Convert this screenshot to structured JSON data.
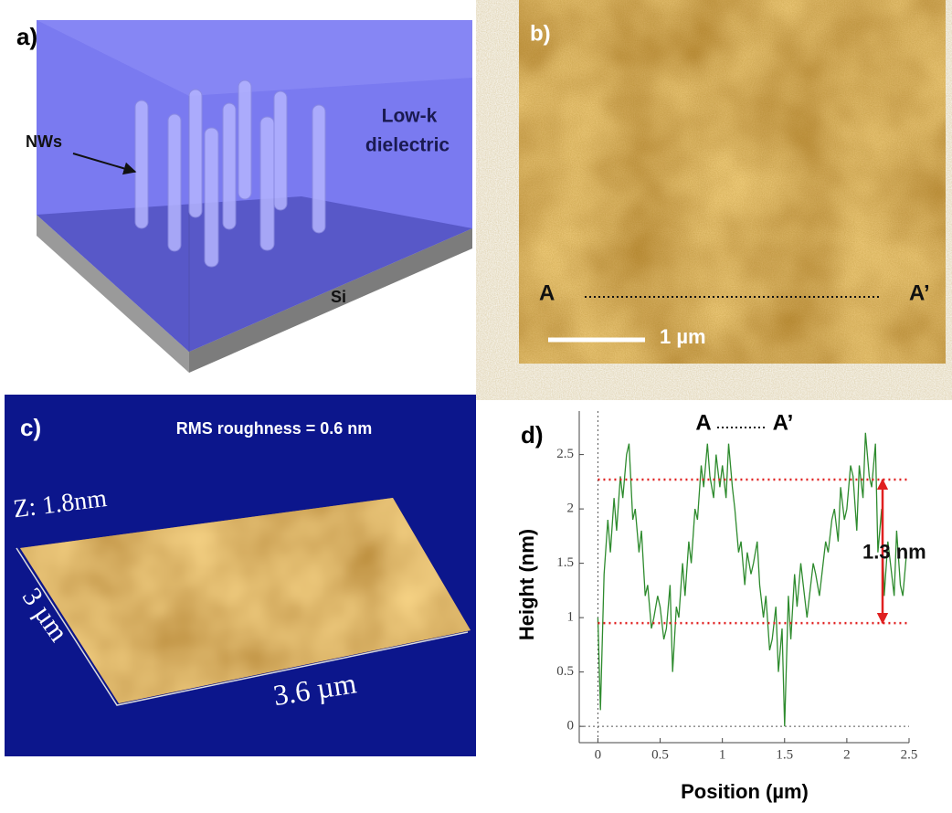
{
  "panel_a": {
    "label": "a)",
    "nws": "NWs",
    "dielectric": [
      "Low-k",
      "dielectric"
    ],
    "substrate": "Si"
  },
  "panel_b": {
    "label": "b)",
    "start": "A",
    "end": "A’",
    "scale_bar": "1 µm"
  },
  "panel_c": {
    "label": "c)",
    "caption": "RMS roughness = 0.6 nm",
    "z_label": "Z: 1.8nm",
    "y_label": "3 µm",
    "x_label": "3.6 µm"
  },
  "chart_data": {
    "type": "line",
    "label": "d)",
    "title_start": "A",
    "title_end": "A’",
    "xlabel": "Position (µm)",
    "ylabel": "Height (nm)",
    "x": [
      0,
      0.02,
      0.05,
      0.08,
      0.1,
      0.13,
      0.15,
      0.18,
      0.2,
      0.23,
      0.25,
      0.28,
      0.3,
      0.33,
      0.35,
      0.38,
      0.4,
      0.43,
      0.45,
      0.48,
      0.5,
      0.53,
      0.55,
      0.58,
      0.6,
      0.63,
      0.65,
      0.68,
      0.7,
      0.73,
      0.75,
      0.78,
      0.8,
      0.83,
      0.85,
      0.88,
      0.9,
      0.93,
      0.95,
      0.98,
      1.0,
      1.03,
      1.05,
      1.08,
      1.1,
      1.13,
      1.15,
      1.18,
      1.2,
      1.23,
      1.25,
      1.28,
      1.3,
      1.33,
      1.35,
      1.38,
      1.4,
      1.43,
      1.45,
      1.48,
      1.5,
      1.53,
      1.55,
      1.58,
      1.6,
      1.63,
      1.65,
      1.68,
      1.7,
      1.73,
      1.75,
      1.78,
      1.8,
      1.83,
      1.85,
      1.88,
      1.9,
      1.93,
      1.95,
      1.98,
      2.0,
      2.03,
      2.05,
      2.08,
      2.1,
      2.13,
      2.15,
      2.18,
      2.2,
      2.23,
      2.25,
      2.28,
      2.3,
      2.33,
      2.35,
      2.38,
      2.4,
      2.43,
      2.45,
      2.48
    ],
    "series": [
      {
        "color": "#2e8b2e",
        "values": [
          1.0,
          0.15,
          1.4,
          1.9,
          1.6,
          2.1,
          1.8,
          2.3,
          2.1,
          2.5,
          2.6,
          1.9,
          2.0,
          1.6,
          1.8,
          1.2,
          1.3,
          0.9,
          1.0,
          1.2,
          1.1,
          0.8,
          0.9,
          1.3,
          0.5,
          1.1,
          1.0,
          1.5,
          1.2,
          1.7,
          1.5,
          2.0,
          1.9,
          2.4,
          2.2,
          2.6,
          2.3,
          2.1,
          2.5,
          2.2,
          2.4,
          2.1,
          2.6,
          2.2,
          2.0,
          1.6,
          1.7,
          1.3,
          1.6,
          1.4,
          1.5,
          1.7,
          1.3,
          1.0,
          1.2,
          0.7,
          0.8,
          1.1,
          0.5,
          0.9,
          0.0,
          1.2,
          0.8,
          1.4,
          1.1,
          1.5,
          1.3,
          1.0,
          1.2,
          1.5,
          1.4,
          1.2,
          1.4,
          1.7,
          1.6,
          1.9,
          2.0,
          1.7,
          2.2,
          1.9,
          2.0,
          2.4,
          2.3,
          1.8,
          2.4,
          2.1,
          2.7,
          2.3,
          2.2,
          2.6,
          1.6,
          2.0,
          1.2,
          1.7,
          1.5,
          1.2,
          1.8,
          1.3,
          1.2,
          1.6
        ]
      }
    ],
    "xlim": [
      -0.15,
      2.5
    ],
    "ylim": [
      -0.15,
      2.9
    ],
    "xticks": [
      0,
      0.5,
      1,
      1.5,
      2,
      2.5
    ],
    "yticks": [
      0,
      0.5,
      1,
      1.5,
      2,
      2.5
    ],
    "reference_lines": {
      "values": [
        2.27,
        0.95
      ],
      "color": "#e02020"
    },
    "annotation": "1.3 nm"
  }
}
